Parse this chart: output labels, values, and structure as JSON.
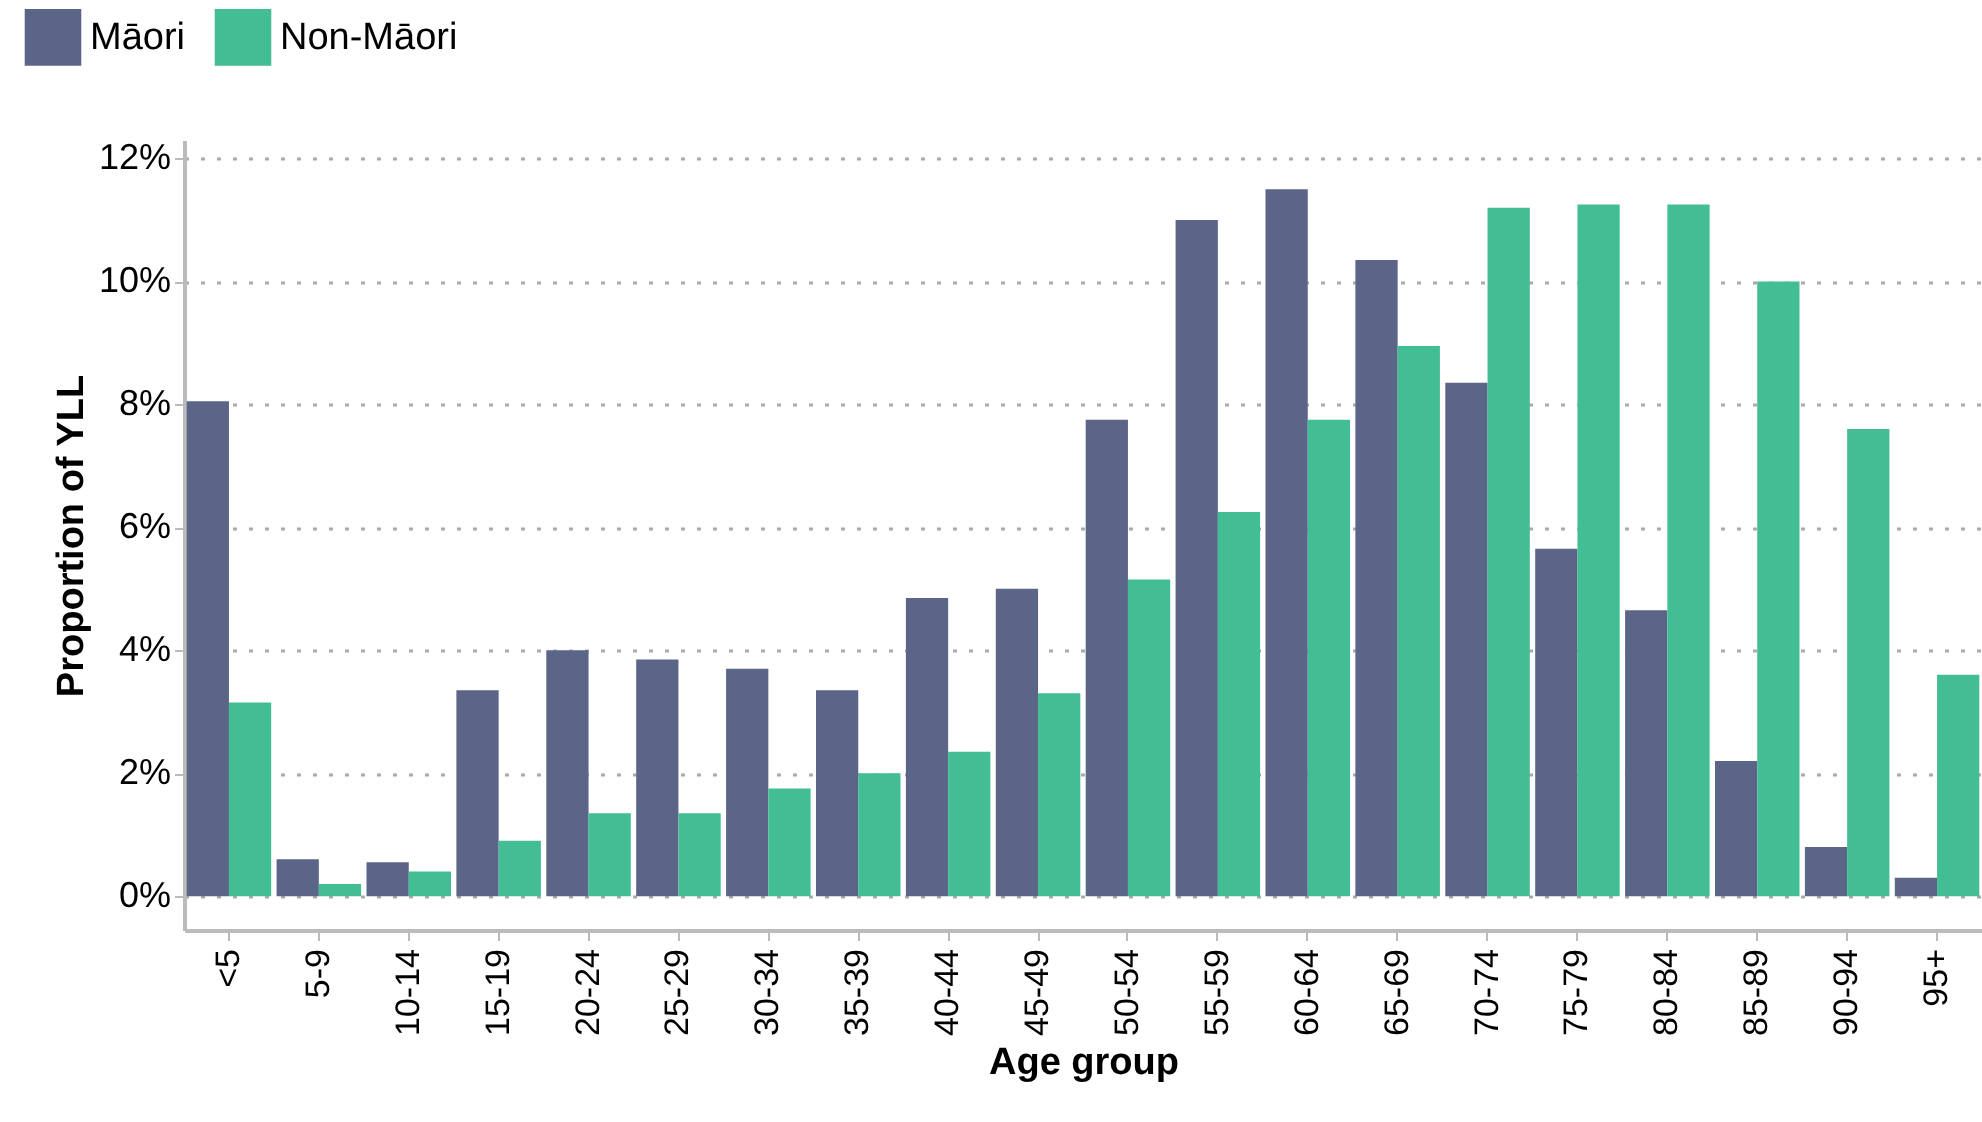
{
  "chart_data": {
    "type": "bar",
    "xlabel": "Age group",
    "ylabel": "Proportion of YLL",
    "categories": [
      "<5",
      "5-9",
      "10-14",
      "15-19",
      "20-24",
      "25-29",
      "30-34",
      "35-39",
      "40-44",
      "45-49",
      "50-54",
      "55-59",
      "60-64",
      "65-69",
      "70-74",
      "75-79",
      "80-84",
      "85-89",
      "90-94",
      "95+"
    ],
    "series": [
      {
        "name": "Māori",
        "color": "#5a6587",
        "values": [
          8.05,
          0.6,
          0.55,
          3.35,
          4.0,
          3.85,
          3.7,
          3.35,
          4.85,
          5.0,
          7.75,
          11.0,
          11.5,
          10.35,
          8.35,
          5.65,
          4.65,
          2.2,
          0.8,
          0.3
        ]
      },
      {
        "name": "Non-Māori",
        "color": "#43bd93",
        "values": [
          3.15,
          0.2,
          0.4,
          0.9,
          1.35,
          1.35,
          1.75,
          2.0,
          2.35,
          3.3,
          5.15,
          6.25,
          7.75,
          8.95,
          11.2,
          11.25,
          11.25,
          10.0,
          7.6,
          3.6
        ]
      }
    ],
    "ylim": [
      -0.55,
      12.3
    ],
    "yticks": [
      {
        "value": 0,
        "label": "0%"
      },
      {
        "value": 2,
        "label": "2%"
      },
      {
        "value": 4,
        "label": "4%"
      },
      {
        "value": 6,
        "label": "6%"
      },
      {
        "value": 8,
        "label": "8%"
      },
      {
        "value": 10,
        "label": "10%"
      },
      {
        "value": 12,
        "label": "12%"
      }
    ],
    "grid": "y",
    "legend": "top left"
  }
}
